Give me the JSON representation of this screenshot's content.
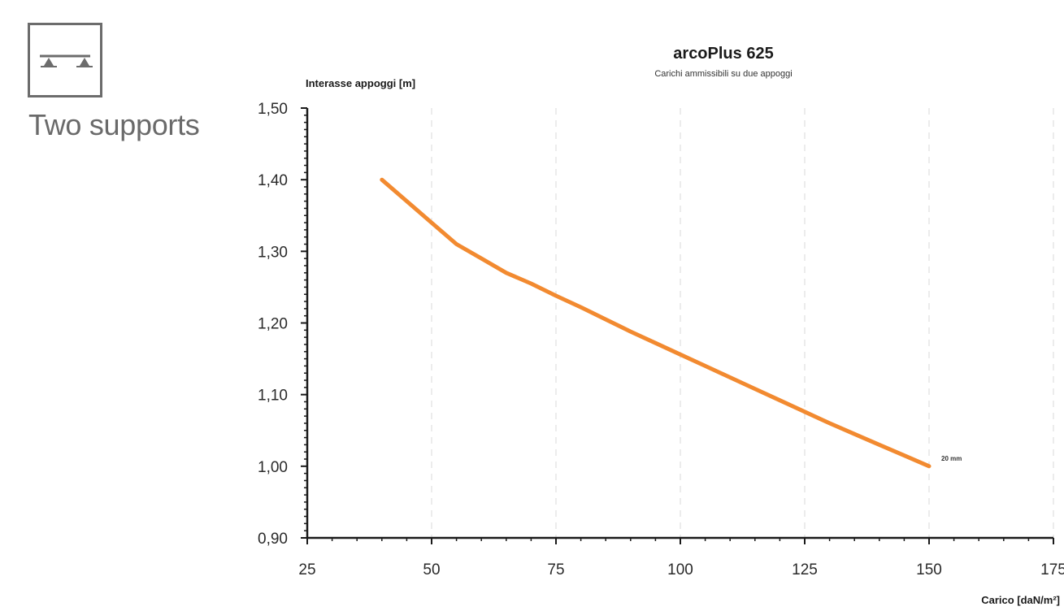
{
  "support": {
    "label": "Two supports",
    "icon": "two-supports-icon"
  },
  "colors": {
    "series": "#f28a30",
    "axis": "#1a1a1a",
    "grid": "#d8d8d8",
    "icon": "#6c6c6c"
  },
  "chart_data": {
    "type": "line",
    "title": "arcoPlus 625",
    "subtitle": "Carichi ammissibili su due appoggi",
    "xlabel": "Carico [daN/m²]",
    "ylabel": "Interasse appoggi [m]",
    "xlim": [
      25,
      175
    ],
    "ylim": [
      0.9,
      1.5
    ],
    "x_ticks": [
      25,
      50,
      75,
      100,
      125,
      150,
      175
    ],
    "y_ticks": [
      0.9,
      1.0,
      1.1,
      1.2,
      1.3,
      1.4,
      1.5
    ],
    "x_tick_labels": [
      "25",
      "50",
      "75",
      "100",
      "125",
      "150",
      "175"
    ],
    "y_tick_labels": [
      "0,90",
      "1,00",
      "1,10",
      "1,20",
      "1,30",
      "1,40",
      "1,50"
    ],
    "grid": "vertical dashed",
    "series": [
      {
        "name": "20 mm",
        "x": [
          40,
          45,
          50,
          55,
          60,
          65,
          70,
          75,
          80,
          85,
          90,
          95,
          100,
          105,
          110,
          115,
          120,
          125,
          130,
          135,
          140,
          145,
          150
        ],
        "y": [
          1.4,
          1.37,
          1.34,
          1.31,
          1.29,
          1.27,
          1.255,
          1.238,
          1.222,
          1.205,
          1.188,
          1.172,
          1.156,
          1.14,
          1.124,
          1.108,
          1.092,
          1.076,
          1.06,
          1.045,
          1.03,
          1.015,
          1.0
        ]
      }
    ]
  }
}
